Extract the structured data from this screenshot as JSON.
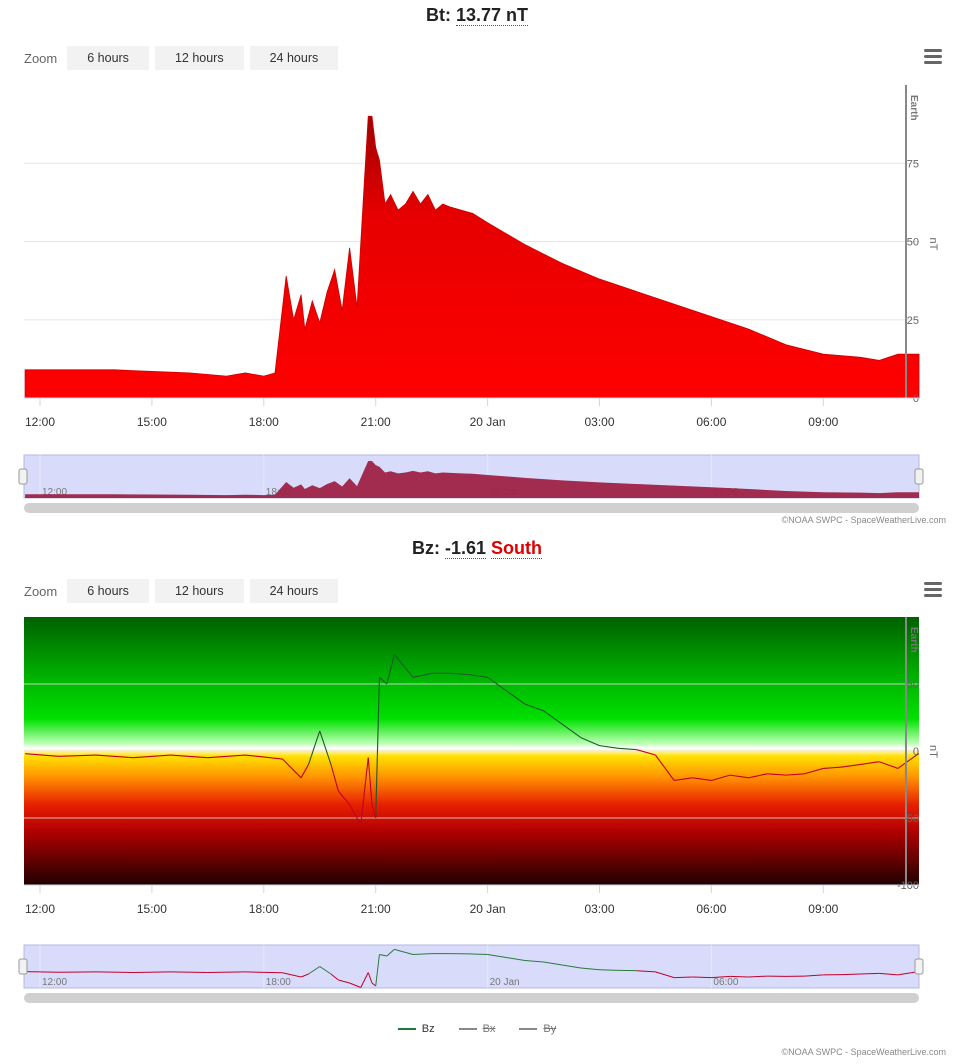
{
  "bt_chart": {
    "title_prefix": "Bt:",
    "value": "13.77",
    "unit": "nT",
    "zoom_label": "Zoom",
    "zoom_buttons": [
      "6 hours",
      "12 hours",
      "24 hours"
    ],
    "credit": "©NOAA SWPC - SpaceWeatherLive.com",
    "earth_label": "Earth",
    "yaxis_title": "nT",
    "fill_color": "#e60000",
    "navigator_color": "#9e2247"
  },
  "bz_chart": {
    "title_prefix": "Bz:",
    "value": "-1.61",
    "direction": "South",
    "zoom_label": "Zoom",
    "zoom_buttons": [
      "6 hours",
      "12 hours",
      "24 hours"
    ],
    "credit": "©NOAA SWPC - SpaceWeatherLive.com",
    "earth_label": "Earth",
    "yaxis_title": "nT",
    "legend": [
      {
        "name": "Bz",
        "color": "#1e7a3c",
        "active": true
      },
      {
        "name": "Bx",
        "color": "#888888",
        "active": false
      },
      {
        "name": "By",
        "color": "#888888",
        "active": false
      }
    ]
  },
  "chart_data": [
    {
      "type": "area",
      "title": "Bt: 13.77 nT",
      "xlabel": "",
      "ylabel": "nT",
      "x_tick_labels": [
        "12:00",
        "15:00",
        "18:00",
        "21:00",
        "20 Jan",
        "03:00",
        "06:00",
        "09:00"
      ],
      "y_ticks": [
        0,
        25,
        50,
        75
      ],
      "ylim": [
        0,
        100
      ],
      "navigator_labels": [
        "12:00",
        "18:00",
        "20 Jan",
        "06:00"
      ],
      "series": [
        {
          "name": "Bt",
          "x_hours": [
            -0.4,
            1.0,
            2.0,
            3.0,
            4.0,
            5.0,
            5.5,
            6.0,
            6.3,
            6.6,
            6.8,
            7.0,
            7.1,
            7.3,
            7.5,
            7.7,
            7.9,
            8.1,
            8.3,
            8.5,
            8.7,
            8.8,
            8.9,
            9.0,
            9.1,
            9.25,
            9.4,
            9.6,
            9.8,
            10.0,
            10.2,
            10.4,
            10.6,
            10.8,
            11.0,
            11.3,
            11.6,
            12.0,
            13.0,
            14.0,
            15.0,
            16.0,
            17.0,
            18.0,
            19.0,
            20.0,
            21.0,
            22.0,
            22.5,
            23.0,
            23.5,
            23.6
          ],
          "values": [
            9,
            9,
            9,
            8.5,
            8,
            7,
            8,
            7,
            8,
            39,
            25,
            33,
            22,
            31,
            24,
            34,
            41,
            28,
            48,
            29,
            70,
            90,
            90,
            80,
            76,
            62,
            65,
            60,
            62,
            66,
            62,
            65,
            60,
            62,
            61,
            60,
            59,
            56,
            49,
            43,
            38,
            34,
            30,
            26,
            22,
            17,
            14,
            13,
            12,
            14,
            14,
            14
          ]
        }
      ]
    },
    {
      "type": "line",
      "title": "Bz: -1.61 South",
      "xlabel": "",
      "ylabel": "nT",
      "x_tick_labels": [
        "12:00",
        "15:00",
        "18:00",
        "21:00",
        "20 Jan",
        "03:00",
        "06:00",
        "09:00"
      ],
      "y_ticks": [
        -100,
        -50,
        0,
        50
      ],
      "ylim": [
        -100,
        100
      ],
      "navigator_labels": [
        "12:00",
        "18:00",
        "20 Jan",
        "06:00"
      ],
      "series": [
        {
          "name": "Bz",
          "x_hours": [
            -0.4,
            0.5,
            1.5,
            2.5,
            3.5,
            4.5,
            5.5,
            6.5,
            7.0,
            7.2,
            7.5,
            7.8,
            8.0,
            8.3,
            8.6,
            8.8,
            8.9,
            9.0,
            9.1,
            9.3,
            9.5,
            10.0,
            10.5,
            11.0,
            11.5,
            12.0,
            12.5,
            13.0,
            13.5,
            14.0,
            14.5,
            15.0,
            15.5,
            16.0,
            16.5,
            17.0,
            17.5,
            18.0,
            18.5,
            19.0,
            19.5,
            20.0,
            20.5,
            21.0,
            21.5,
            22.0,
            22.5,
            23.0,
            23.5,
            23.6
          ],
          "values": [
            -2,
            -4,
            -3,
            -5,
            -3,
            -5,
            -3,
            -6,
            -20,
            -10,
            15,
            -10,
            -30,
            -40,
            -55,
            -5,
            -40,
            -50,
            55,
            50,
            72,
            55,
            58,
            58,
            57,
            55,
            45,
            35,
            30,
            20,
            10,
            4,
            2,
            1,
            -3,
            -22,
            -20,
            -22,
            -18,
            -20,
            -17,
            -18,
            -17,
            -13,
            -12,
            -10,
            -8,
            -13,
            -3,
            -2
          ]
        }
      ]
    }
  ]
}
